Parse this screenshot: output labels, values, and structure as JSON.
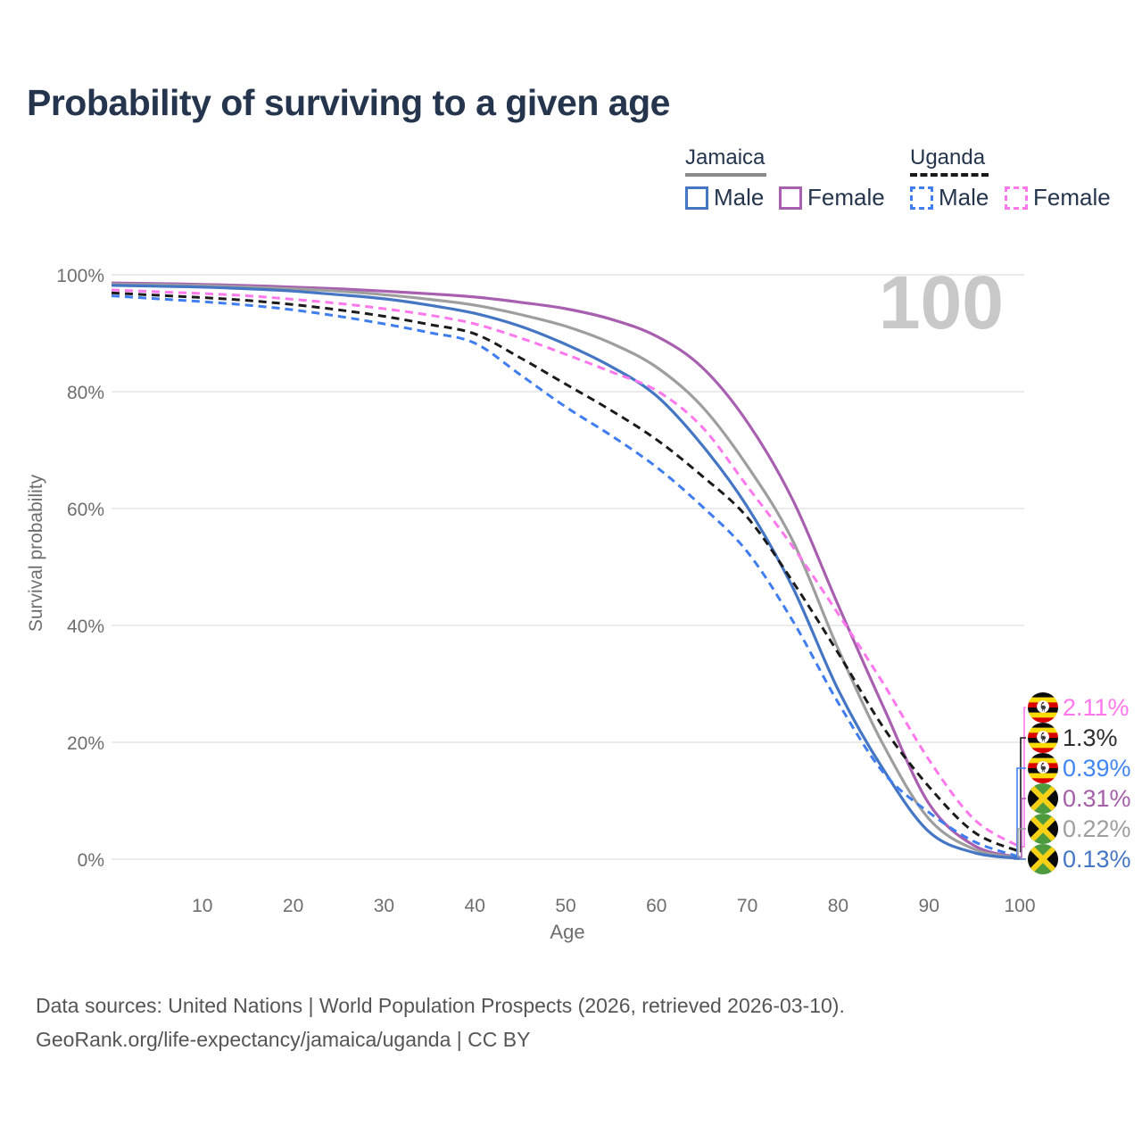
{
  "title": "Probability of surviving to a given age",
  "watermark": "100",
  "legend": {
    "groups": [
      {
        "country": "Jamaica",
        "line_style": "solid",
        "items": [
          {
            "label": "Male",
            "color": "#4576c4"
          },
          {
            "label": "Female",
            "color": "#a85fb0"
          }
        ]
      },
      {
        "country": "Uganda",
        "line_style": "dashed",
        "items": [
          {
            "label": "Male",
            "color": "#3f7df0"
          },
          {
            "label": "Female",
            "color": "#ff77ec"
          }
        ]
      }
    ]
  },
  "chart_data": {
    "type": "line",
    "title": "Probability of surviving to a given age",
    "xlabel": "Age",
    "ylabel": "Survival probability",
    "x_range": [
      0,
      100
    ],
    "y_range": [
      0,
      100
    ],
    "grid": true,
    "x_ticks": [
      10,
      20,
      30,
      40,
      50,
      60,
      70,
      80,
      90,
      100
    ],
    "y_ticks": [
      0,
      20,
      40,
      60,
      80,
      100
    ],
    "y_tick_labels": [
      "0%",
      "20%",
      "40%",
      "60%",
      "80%",
      "100%"
    ],
    "ages": [
      0,
      5,
      10,
      15,
      20,
      25,
      30,
      35,
      40,
      45,
      50,
      55,
      60,
      65,
      70,
      75,
      80,
      85,
      90,
      95,
      100
    ],
    "series": [
      {
        "name": "Uganda Female",
        "country": "Uganda",
        "sex": "Female",
        "color": "#ff77ec",
        "dashed": true,
        "flag": "uganda",
        "values": [
          97.4,
          97.1,
          96.8,
          96.4,
          95.8,
          95.1,
          94.2,
          93.1,
          91.6,
          89.2,
          86.4,
          83.4,
          80.2,
          74.0,
          63.8,
          53.5,
          42.0,
          30.0,
          17.0,
          6.8,
          2.11
        ],
        "end_label": "2.11%",
        "end_label_color": "#ff77ec"
      },
      {
        "name": "Uganda (both sexes)",
        "country": "Uganda",
        "sex": "Both",
        "color": "#1b1b1b",
        "dashed": true,
        "flag": "uganda",
        "values": [
          96.9,
          96.5,
          96.1,
          95.6,
          94.9,
          94.0,
          92.9,
          91.5,
          89.9,
          85.8,
          81.3,
          76.8,
          71.8,
          65.6,
          58.5,
          47.5,
          35.3,
          22.5,
          12.4,
          4.6,
          1.3
        ],
        "end_label": "1.3%",
        "end_label_color": "#2e2e2e"
      },
      {
        "name": "Uganda Male",
        "country": "Uganda",
        "sex": "Male",
        "color": "#3f7df0",
        "dashed": true,
        "flag": "uganda",
        "values": [
          96.4,
          95.9,
          95.4,
          94.8,
          94.0,
          92.9,
          91.6,
          90.1,
          88.3,
          82.9,
          77.4,
          72.5,
          67.1,
          60.4,
          52.6,
          40.8,
          26.8,
          14.8,
          8.0,
          3.0,
          0.39
        ],
        "end_label": "0.39%",
        "end_label_color": "#4285f4"
      },
      {
        "name": "Jamaica Female",
        "country": "Jamaica",
        "sex": "Female",
        "color": "#a85fb0",
        "dashed": false,
        "flag": "jamaica",
        "values": [
          98.6,
          98.5,
          98.35,
          98.15,
          97.9,
          97.6,
          97.2,
          96.75,
          96.2,
          95.3,
          94.2,
          92.4,
          89.5,
          84.2,
          74.8,
          61.5,
          43.5,
          26.0,
          9.5,
          2.3,
          0.31
        ],
        "end_label": "0.31%",
        "end_label_color": "#a55fa8"
      },
      {
        "name": "Jamaica (both sexes)",
        "country": "Jamaica",
        "sex": "Both",
        "color": "#9e9e9e",
        "dashed": false,
        "flag": "jamaica",
        "values": [
          98.4,
          98.3,
          98.15,
          97.9,
          97.6,
          97.2,
          96.6,
          95.8,
          94.8,
          93.2,
          91.2,
          88.3,
          84.2,
          77.5,
          67.3,
          54.5,
          36.0,
          19.5,
          6.9,
          1.7,
          0.22
        ],
        "end_label": "0.22%",
        "end_label_color": "#9e9e9e"
      },
      {
        "name": "Jamaica Male",
        "country": "Jamaica",
        "sex": "Male",
        "color": "#4576c4",
        "dashed": false,
        "flag": "jamaica",
        "values": [
          98.2,
          98.05,
          97.9,
          97.6,
          97.2,
          96.6,
          95.9,
          94.8,
          93.4,
          91.2,
          88.1,
          84.3,
          79.3,
          70.9,
          60.3,
          46.5,
          29.0,
          15.3,
          4.7,
          1.1,
          0.13
        ],
        "end_label": "0.13%",
        "end_label_color": "#4576c4"
      }
    ],
    "legend_position": "top-right",
    "watermark": "100"
  },
  "footer": {
    "line1": "Data sources: United Nations | World Population Prospects (2026, retrieved 2026-03-10).",
    "line2": "GeoRank.org/life-expectancy/jamaica/uganda | CC BY"
  }
}
